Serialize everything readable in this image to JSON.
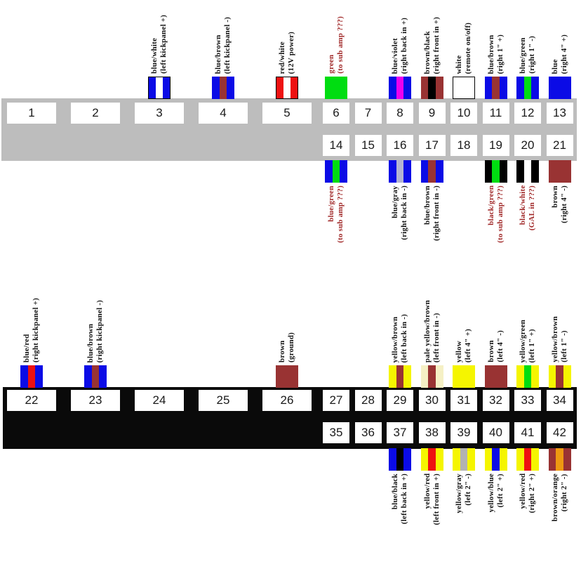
{
  "palette": {
    "blue": "#0b0be6",
    "white": "#ffffff",
    "red": "#ee1111",
    "brown": "#993333",
    "green": "#00dd11",
    "violet": "#ee00ee",
    "black": "#000000",
    "gray_blue": "#b4b4d2",
    "gray": "#b2b2b2",
    "yellow": "#f5f500",
    "pale_yellow": "#f5f0c5",
    "orange": "#ee9911",
    "band_upper": "#bdbdbd",
    "band_lower": "#0a0a0a",
    "label_black": "#141414",
    "label_red": "#a12a2a"
  },
  "pins": [
    {
      "num": "1"
    },
    {
      "num": "2"
    },
    {
      "num": "3",
      "wire": {
        "stripes": [
          "blue",
          "white",
          "blue"
        ],
        "border": true
      },
      "label": [
        "blue/white",
        "(left kickpanel +)"
      ]
    },
    {
      "num": "4",
      "wire": {
        "stripes": [
          "blue",
          "brown",
          "blue"
        ]
      },
      "label": [
        "blue/brown",
        "(left kickpanel -)"
      ]
    },
    {
      "num": "5",
      "wire": {
        "stripes": [
          "red",
          "white",
          "red"
        ],
        "border": true
      },
      "label": [
        "red/white",
        "(12V power)"
      ]
    },
    {
      "num": "6",
      "wire": {
        "stripes": [
          "green"
        ]
      },
      "label": [
        "green",
        "(to sub amp ???)"
      ],
      "emphasis": true
    },
    {
      "num": "7"
    },
    {
      "num": "8",
      "wire": {
        "stripes": [
          "blue",
          "violet",
          "blue"
        ]
      },
      "label": [
        "blue/violet",
        "(right back in +)"
      ]
    },
    {
      "num": "9",
      "wire": {
        "stripes": [
          "brown",
          "black",
          "brown"
        ]
      },
      "label": [
        "brown/black",
        "(right front in +)"
      ]
    },
    {
      "num": "10",
      "wire": {
        "stripes": [
          "white"
        ],
        "border": true
      },
      "label": [
        "white",
        "(remote on/off)"
      ]
    },
    {
      "num": "11",
      "wire": {
        "stripes": [
          "blue",
          "brown",
          "blue"
        ]
      },
      "label": [
        "blue/brown",
        "(right 1\" +)"
      ]
    },
    {
      "num": "12",
      "wire": {
        "stripes": [
          "blue",
          "green",
          "blue"
        ]
      },
      "label": [
        "blue/green",
        "(right 1\" -)"
      ]
    },
    {
      "num": "13",
      "wire": {
        "stripes": [
          "blue"
        ]
      },
      "label": [
        "blue",
        "(right 4\" +)"
      ]
    },
    {
      "num": "14",
      "wire": {
        "stripes": [
          "blue",
          "green",
          "blue"
        ]
      },
      "label": [
        "blue/green",
        "(to sub amp ???)"
      ],
      "emphasis": true
    },
    {
      "num": "15"
    },
    {
      "num": "16",
      "wire": {
        "stripes": [
          "blue",
          "gray_blue",
          "blue"
        ]
      },
      "label": [
        "blue/gray",
        "(right back in -)"
      ]
    },
    {
      "num": "17",
      "wire": {
        "stripes": [
          "blue",
          "brown",
          "blue"
        ]
      },
      "label": [
        "blue/brown",
        "(right front in -)"
      ]
    },
    {
      "num": "18"
    },
    {
      "num": "19",
      "wire": {
        "stripes": [
          "black",
          "green",
          "black"
        ]
      },
      "label": [
        "black/green",
        "(to sub amp ???)"
      ],
      "emphasis": true
    },
    {
      "num": "20",
      "wire": {
        "stripes": [
          "black",
          "white",
          "black"
        ]
      },
      "label": [
        "black/white",
        "(GAL in ???)"
      ],
      "emphasis": true
    },
    {
      "num": "21",
      "wire": {
        "stripes": [
          "brown"
        ]
      },
      "label": [
        "brown",
        "(right 4\" -)"
      ]
    },
    {
      "num": "22",
      "wire": {
        "stripes": [
          "blue",
          "red",
          "blue"
        ]
      },
      "label": [
        "blue/red",
        "(right kickpanel +)"
      ]
    },
    {
      "num": "23",
      "wire": {
        "stripes": [
          "blue",
          "brown",
          "blue"
        ]
      },
      "label": [
        "blue/brown",
        "(right kickpanel -)"
      ]
    },
    {
      "num": "24"
    },
    {
      "num": "25"
    },
    {
      "num": "26",
      "wire": {
        "stripes": [
          "brown"
        ]
      },
      "label": [
        "brown",
        "(ground)"
      ]
    },
    {
      "num": "27"
    },
    {
      "num": "28"
    },
    {
      "num": "29",
      "wire": {
        "stripes": [
          "yellow",
          "brown",
          "yellow"
        ]
      },
      "label": [
        "yellow/brown",
        "(left back in -)"
      ]
    },
    {
      "num": "30",
      "wire": {
        "stripes": [
          "pale_yellow",
          "brown",
          "pale_yellow"
        ]
      },
      "label": [
        "pale yellow/brown",
        "(left front in -)"
      ]
    },
    {
      "num": "31",
      "wire": {
        "stripes": [
          "yellow"
        ]
      },
      "label": [
        "yellow",
        "(left 4\" +)"
      ]
    },
    {
      "num": "32",
      "wire": {
        "stripes": [
          "brown"
        ]
      },
      "label": [
        "brown",
        "(left 4\" -)"
      ]
    },
    {
      "num": "33",
      "wire": {
        "stripes": [
          "yellow",
          "green",
          "yellow"
        ]
      },
      "label": [
        "yellow/green",
        "(left 1\" +)"
      ]
    },
    {
      "num": "34",
      "wire": {
        "stripes": [
          "yellow",
          "brown",
          "yellow"
        ]
      },
      "label": [
        "yellow/brown",
        "(left 1\" -)"
      ]
    },
    {
      "num": "35"
    },
    {
      "num": "36"
    },
    {
      "num": "37",
      "wire": {
        "stripes": [
          "blue",
          "black",
          "blue"
        ]
      },
      "label": [
        "blue/black",
        "(left back in +)"
      ]
    },
    {
      "num": "38",
      "wire": {
        "stripes": [
          "yellow",
          "red",
          "yellow"
        ]
      },
      "label": [
        "yellow/red",
        "(left front in +)"
      ]
    },
    {
      "num": "39",
      "wire": {
        "stripes": [
          "yellow",
          "gray",
          "yellow"
        ]
      },
      "label": [
        "yellow/gray",
        "(left 2\" -)"
      ]
    },
    {
      "num": "40",
      "wire": {
        "stripes": [
          "yellow",
          "blue",
          "yellow"
        ]
      },
      "label": [
        "yellow/blue",
        "(left 2\" +)"
      ]
    },
    {
      "num": "41",
      "wire": {
        "stripes": [
          "yellow",
          "red",
          "yellow"
        ]
      },
      "label": [
        "yellow/red",
        "(right 2\" +)"
      ]
    },
    {
      "num": "42",
      "wire": {
        "stripes": [
          "brown",
          "orange",
          "brown"
        ]
      },
      "label": [
        "brown/orange",
        "(right 2\" -)"
      ]
    }
  ]
}
